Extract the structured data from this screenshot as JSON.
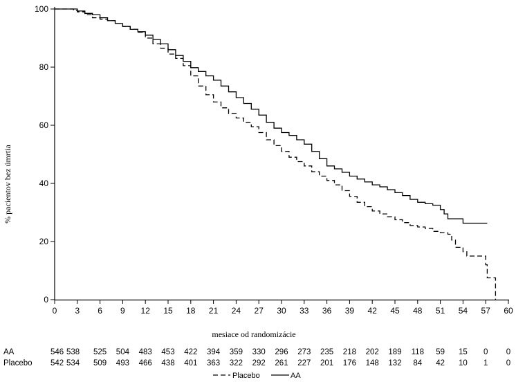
{
  "chart_data": {
    "type": "line",
    "title": "",
    "xlabel": "mesiace od randomizácie",
    "ylabel": "% pacientov bez úmrtia",
    "xlim": [
      0,
      60
    ],
    "ylim": [
      0,
      100
    ],
    "x_ticks": [
      0,
      3,
      6,
      9,
      12,
      15,
      18,
      21,
      24,
      27,
      30,
      33,
      36,
      39,
      42,
      45,
      48,
      51,
      54,
      57,
      60
    ],
    "y_ticks": [
      0,
      20,
      40,
      60,
      80,
      100
    ],
    "grid": false,
    "legend_placement": "bottom-center",
    "series": [
      {
        "name": "AA",
        "style": "solid",
        "points": [
          [
            0,
            100
          ],
          [
            2.5,
            100
          ],
          [
            3,
            99.3
          ],
          [
            4,
            98.5
          ],
          [
            5,
            98
          ],
          [
            6,
            97
          ],
          [
            7,
            96
          ],
          [
            8,
            95
          ],
          [
            9,
            94
          ],
          [
            10,
            93
          ],
          [
            11,
            92.2
          ],
          [
            12,
            91
          ],
          [
            13,
            89.5
          ],
          [
            14,
            88
          ],
          [
            15,
            86
          ],
          [
            16,
            84
          ],
          [
            17,
            82
          ],
          [
            18,
            79.8
          ],
          [
            19,
            78.5
          ],
          [
            20,
            77
          ],
          [
            21,
            75.5
          ],
          [
            22,
            73.5
          ],
          [
            23,
            71.5
          ],
          [
            24,
            69.5
          ],
          [
            25,
            67.5
          ],
          [
            26,
            65.5
          ],
          [
            27,
            63.5
          ],
          [
            28,
            61
          ],
          [
            29,
            59
          ],
          [
            30,
            57.5
          ],
          [
            31,
            56.5
          ],
          [
            32,
            55
          ],
          [
            33,
            53.5
          ],
          [
            34,
            51
          ],
          [
            35,
            48.5
          ],
          [
            36,
            46
          ],
          [
            37,
            45
          ],
          [
            38,
            43.8
          ],
          [
            39,
            42.5
          ],
          [
            40,
            41.5
          ],
          [
            41,
            40.5
          ],
          [
            42,
            39.5
          ],
          [
            43,
            38.8
          ],
          [
            44,
            37.8
          ],
          [
            45,
            36.8
          ],
          [
            46,
            35.8
          ],
          [
            47,
            34.5
          ],
          [
            48,
            33.5
          ],
          [
            49,
            33
          ],
          [
            50,
            32.5
          ],
          [
            51,
            31
          ],
          [
            51.5,
            29.5
          ],
          [
            52,
            27.8
          ],
          [
            53.5,
            27.8
          ],
          [
            54,
            26.3
          ],
          [
            57.2,
            26.3
          ]
        ]
      },
      {
        "name": "Placebo",
        "style": "dashed",
        "points": [
          [
            0,
            100
          ],
          [
            2.5,
            99.5
          ],
          [
            3,
            99
          ],
          [
            4,
            98
          ],
          [
            5,
            97
          ],
          [
            6,
            96.5
          ],
          [
            7,
            96
          ],
          [
            8,
            95
          ],
          [
            9,
            94
          ],
          [
            10,
            93
          ],
          [
            11,
            92
          ],
          [
            12,
            90
          ],
          [
            13,
            88
          ],
          [
            14,
            86.5
          ],
          [
            15,
            84.5
          ],
          [
            16,
            83
          ],
          [
            17,
            80.5
          ],
          [
            18,
            77
          ],
          [
            19,
            73.5
          ],
          [
            20,
            70.5
          ],
          [
            21,
            68
          ],
          [
            22,
            66
          ],
          [
            23,
            64
          ],
          [
            24,
            62.5
          ],
          [
            25,
            61
          ],
          [
            26,
            59.5
          ],
          [
            27,
            57.5
          ],
          [
            28,
            55
          ],
          [
            29,
            53
          ],
          [
            30,
            51
          ],
          [
            31,
            49
          ],
          [
            32,
            47.5
          ],
          [
            33,
            46
          ],
          [
            34,
            44
          ],
          [
            35,
            42.5
          ],
          [
            36,
            41
          ],
          [
            37,
            39.5
          ],
          [
            38,
            37.5
          ],
          [
            39,
            35.5
          ],
          [
            40,
            33.5
          ],
          [
            41,
            32
          ],
          [
            42,
            30.5
          ],
          [
            43,
            29.5
          ],
          [
            44,
            28.5
          ],
          [
            45,
            27.5
          ],
          [
            46,
            26.5
          ],
          [
            47,
            25.5
          ],
          [
            48,
            25
          ],
          [
            49,
            24.5
          ],
          [
            50,
            23.5
          ],
          [
            51,
            23
          ],
          [
            52,
            22.5
          ],
          [
            52.5,
            20.5
          ],
          [
            53,
            18
          ],
          [
            54,
            16.5
          ],
          [
            54.5,
            15
          ],
          [
            56.5,
            15
          ],
          [
            57,
            12
          ],
          [
            57.2,
            7.5
          ],
          [
            58.2,
            7.5
          ],
          [
            58.3,
            0
          ]
        ]
      }
    ],
    "risk_table": {
      "rows": [
        {
          "label": "AA",
          "values": [
            "546",
            "538",
            "525",
            "504",
            "483",
            "453",
            "422",
            "394",
            "359",
            "330",
            "296",
            "273",
            "235",
            "218",
            "202",
            "189",
            "118",
            "59",
            "15",
            "0",
            "0"
          ]
        },
        {
          "label": "Placebo",
          "values": [
            "542",
            "534",
            "509",
            "493",
            "466",
            "438",
            "401",
            "363",
            "322",
            "292",
            "261",
            "227",
            "201",
            "176",
            "148",
            "132",
            "84",
            "42",
            "10",
            "1",
            "0"
          ]
        }
      ]
    },
    "legend": [
      {
        "name": "Placebo",
        "style": "dashed"
      },
      {
        "name": "AA",
        "style": "solid"
      }
    ]
  }
}
